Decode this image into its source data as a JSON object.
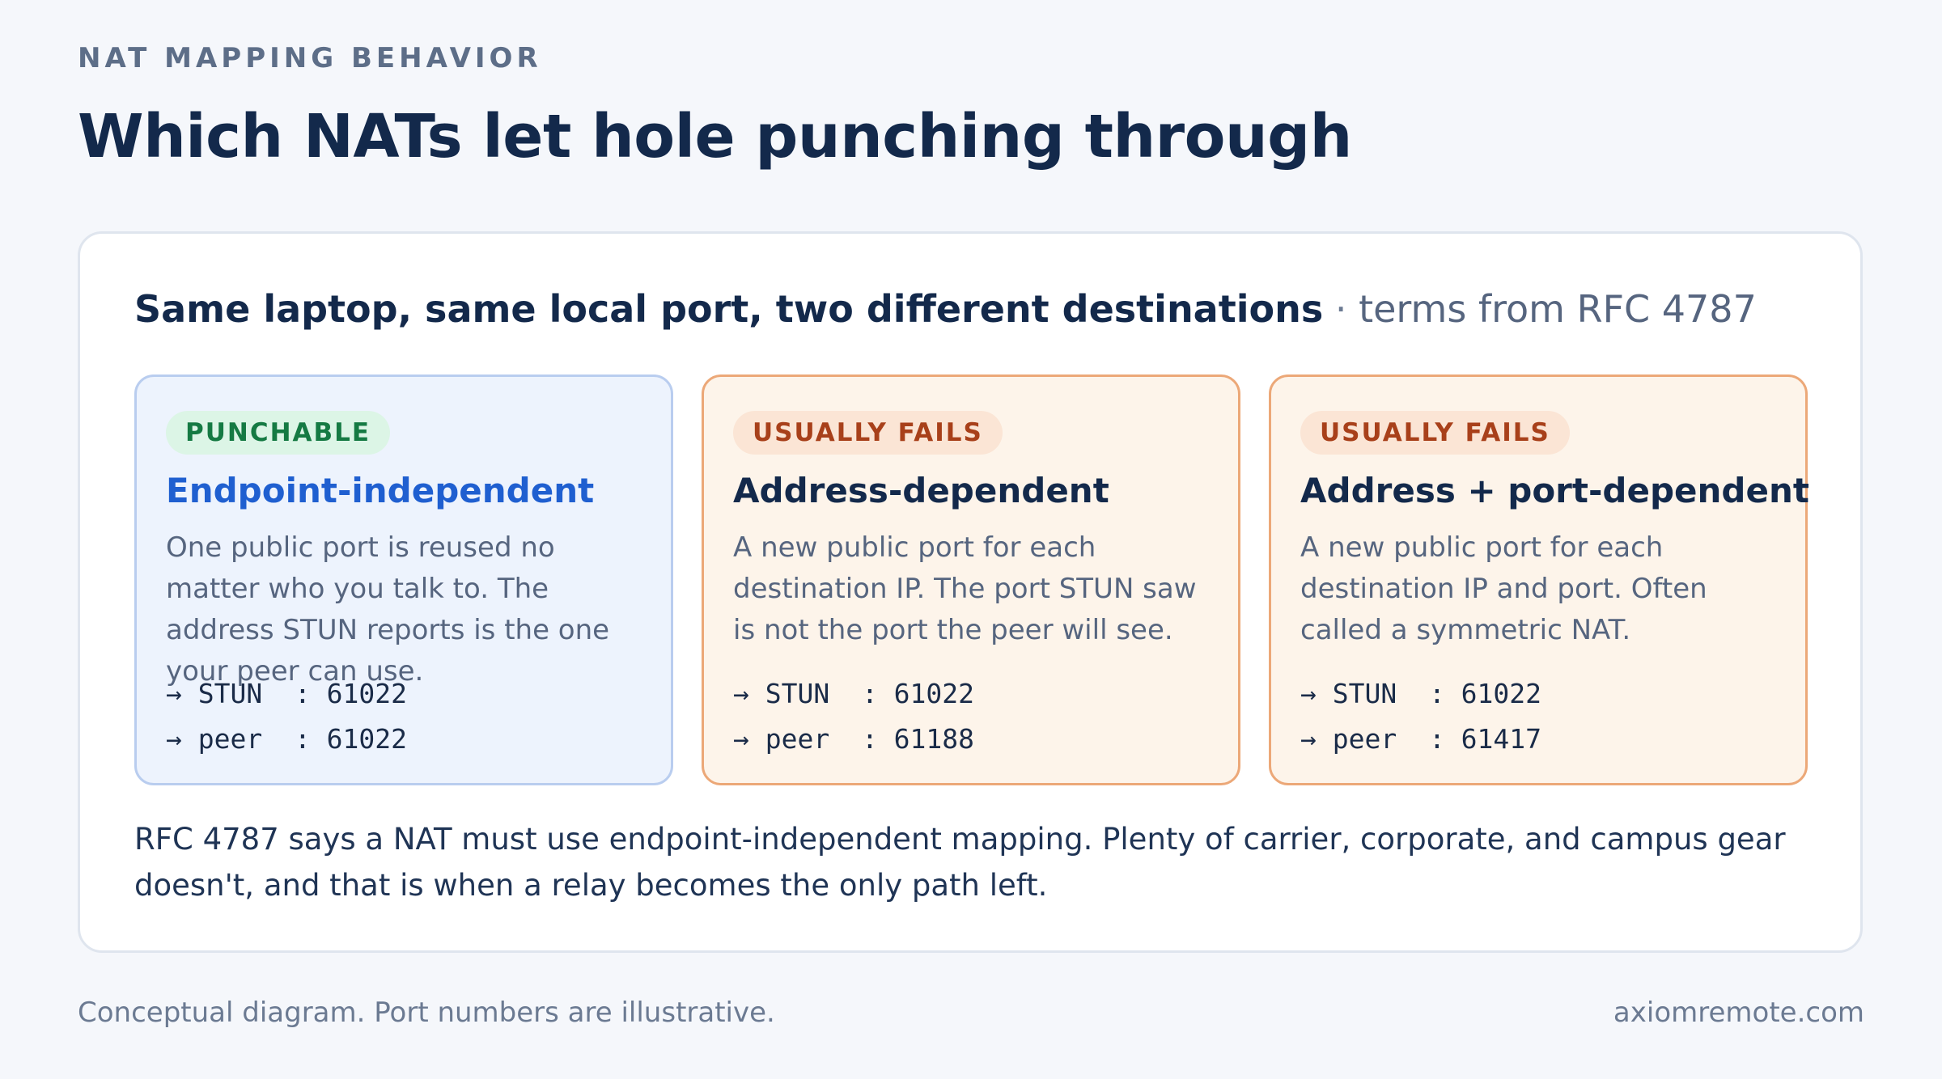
{
  "header": {
    "eyebrow": "NAT MAPPING BEHAVIOR",
    "title": "Which NATs let hole punching through"
  },
  "panel": {
    "heading": "Same laptop, same local port, two different destinations",
    "heading_separator": "·",
    "heading_suffix": "terms from RFC 4787",
    "cards": [
      {
        "badge": "PUNCHABLE",
        "title": "Endpoint-independent",
        "description": "One public port is reused no matter who you talk to. The address STUN reports is the one your peer can use.",
        "rows": [
          "→ STUN  : 61022",
          "→ peer  : 61022"
        ]
      },
      {
        "badge": "USUALLY FAILS",
        "title": "Address-dependent",
        "description": "A new public port for each destination IP. The port STUN saw is not the port the peer will see.",
        "rows": [
          "→ STUN  : 61022",
          "→ peer  : 61188"
        ]
      },
      {
        "badge": "USUALLY FAILS",
        "title": "Address + port-dependent",
        "description": "A new public port for each destination IP and port. Often called a symmetric NAT.",
        "rows": [
          "→ STUN  : 61022",
          "→ peer  : 61417"
        ]
      }
    ],
    "note": "RFC 4787 says a NAT must use endpoint-independent mapping. Plenty of carrier, corporate, and campus gear doesn't, and that is when a relay becomes the only path left."
  },
  "footer": {
    "caption": "Conceptual diagram. Port numbers are illustrative.",
    "site": "axiomremote.com"
  },
  "colors": {
    "background": "#f5f7fb",
    "panel": "#ffffff",
    "title": "#13294b",
    "accent_blue": "#1f5fd0",
    "good_badge_text": "#157a43",
    "bad_badge_text": "#a8401a",
    "warn_card_border": "#eca878",
    "primary_card_border": "#b9cdef"
  },
  "icons": {
    "row_arrow": "right-arrow-icon"
  }
}
